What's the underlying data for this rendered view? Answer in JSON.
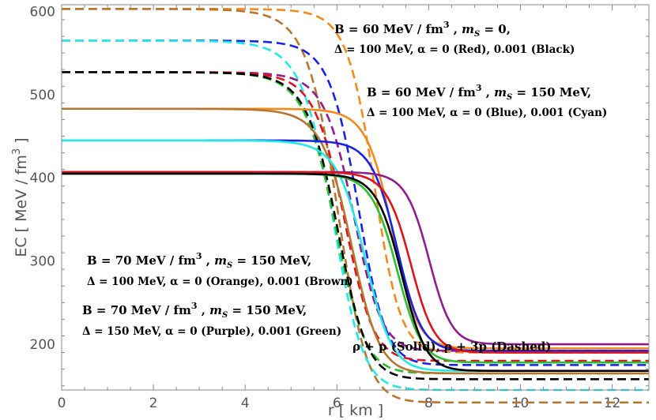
{
  "chart_data": {
    "type": "line",
    "xlabel": "r [ km ]",
    "ylabel": "EC  [ MeV / fm",
    "ylabel_exp": "3",
    "ylabel_end": " ]",
    "xlim": [
      0,
      12.8
    ],
    "ylim": [
      145,
      608
    ],
    "x_ticks": [
      0,
      2,
      4,
      6,
      8,
      10,
      12
    ],
    "y_ticks": [
      200,
      300,
      400,
      500,
      600
    ],
    "colors": {
      "orange": "#F28A1C",
      "blue": "#1A22E6",
      "red": "#E0121D",
      "black": "#000000",
      "cyan": "#22E8E8",
      "brown": "#B5772E",
      "purple": "#8E1E8E",
      "green": "#2EBE32"
    },
    "series": [
      {
        "name": "Orange dashed (rho+3p)",
        "color": "orange",
        "style": "dashed",
        "y0": 603,
        "xh": 6.8,
        "y_end": 190
      },
      {
        "name": "Brown dashed (rho+3p)",
        "color": "brown",
        "style": "dashed",
        "y0": 603,
        "xh": 6.0,
        "y_end": 130
      },
      {
        "name": "Blue dashed (rho+3p)",
        "color": "blue",
        "style": "dashed",
        "y0": 565,
        "xh": 6.45,
        "y_end": 175
      },
      {
        "name": "Cyan dashed (rho+3p)",
        "color": "cyan",
        "style": "dashed",
        "y0": 565,
        "xh": 5.9,
        "y_end": 145
      },
      {
        "name": "Purple dashed (rho+3p)",
        "color": "purple",
        "style": "dashed",
        "y0": 527,
        "xh": 6.35,
        "y_end": 192
      },
      {
        "name": "Green dashed (rho+3p)",
        "color": "green",
        "style": "dashed",
        "y0": 527,
        "xh": 5.95,
        "y_end": 165
      },
      {
        "name": "Red dashed (rho+3p)",
        "color": "red",
        "style": "dashed",
        "y0": 527,
        "xh": 6.15,
        "y_end": 180
      },
      {
        "name": "Black dashed (rho+3p)",
        "color": "black",
        "style": "dashed",
        "y0": 527,
        "xh": 6.0,
        "y_end": 158
      },
      {
        "name": "Orange solid (rho+p)",
        "color": "orange",
        "style": "solid",
        "y0": 483,
        "xh": 7.2,
        "y_end": 195
      },
      {
        "name": "Brown solid (rho+p)",
        "color": "brown",
        "style": "solid",
        "y0": 483,
        "xh": 6.3,
        "y_end": 165
      },
      {
        "name": "Blue solid (rho+p)",
        "color": "blue",
        "style": "solid",
        "y0": 445,
        "xh": 7.3,
        "y_end": 192
      },
      {
        "name": "Cyan solid (rho+p)",
        "color": "cyan",
        "style": "solid",
        "y0": 445,
        "xh": 6.6,
        "y_end": 168
      },
      {
        "name": "Purple solid (rho+p)",
        "color": "purple",
        "style": "solid",
        "y0": 407,
        "xh": 8.0,
        "y_end": 200
      },
      {
        "name": "Green solid (rho+p)",
        "color": "green",
        "style": "solid",
        "y0": 405,
        "xh": 7.3,
        "y_end": 178
      },
      {
        "name": "Red solid (rho+p)",
        "color": "red",
        "style": "solid",
        "y0": 407,
        "xh": 7.6,
        "y_end": 190
      },
      {
        "name": "Black solid (rho+p)",
        "color": "black",
        "style": "solid",
        "y0": 405,
        "xh": 7.4,
        "y_end": 168
      }
    ],
    "annotations": {
      "a1": {
        "line1": {
          "t1": "B = 60 MeV / fm",
          "e1": "3",
          "t2": " , ",
          "m": "m",
          "sub": "S",
          "t3": " = 0,"
        },
        "line2": "Δ = 100 MeV, α = 0 (Red), 0.001 (Black)"
      },
      "a2": {
        "line1": {
          "t1": "B = 60 MeV / fm",
          "e1": "3",
          "t2": " , ",
          "m": "m",
          "sub": "S",
          "t3": " = 150 MeV,"
        },
        "line2": "Δ = 100 MeV, α = 0 (Blue), 0.001 (Cyan)"
      },
      "a3": {
        "line1": {
          "t1": "B = 70 MeV / fm",
          "e1": "3",
          "t2": " , ",
          "m": "m",
          "sub": "S",
          "t3": " = 150 MeV,"
        },
        "line2": "Δ = 100 MeV, α = 0 (Orange), 0.001 (Brown)"
      },
      "a4": {
        "line1": {
          "t1": "B = 70 MeV / fm",
          "e1": "3",
          "t2": " , ",
          "m": "m",
          "sub": "S",
          "t3": " = 150 MeV,"
        },
        "line2": "Δ = 150 MeV, α = 0 (Purple), 0.001 (Green)"
      },
      "legend_style": "ρ + p (Solid),  ρ + 3p (Dashed)"
    }
  }
}
